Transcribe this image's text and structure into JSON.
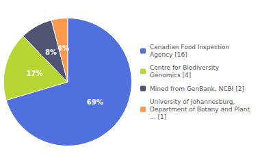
{
  "chart_data": {
    "type": "pie",
    "categories": [
      "Canadian Food Inspection\nAgency [16]",
      "Centre for Biodiversity\nGenomics [4]",
      "Mined from GenBank, NCBI [2]",
      "University of Johannesburg,\nDepartment of Botany and Plant\n... [1]"
    ],
    "values": [
      69,
      17,
      8,
      4
    ],
    "value_labels": [
      "69%",
      "17%",
      "8%",
      "4%"
    ],
    "data_labels": true,
    "legend": "right"
  }
}
